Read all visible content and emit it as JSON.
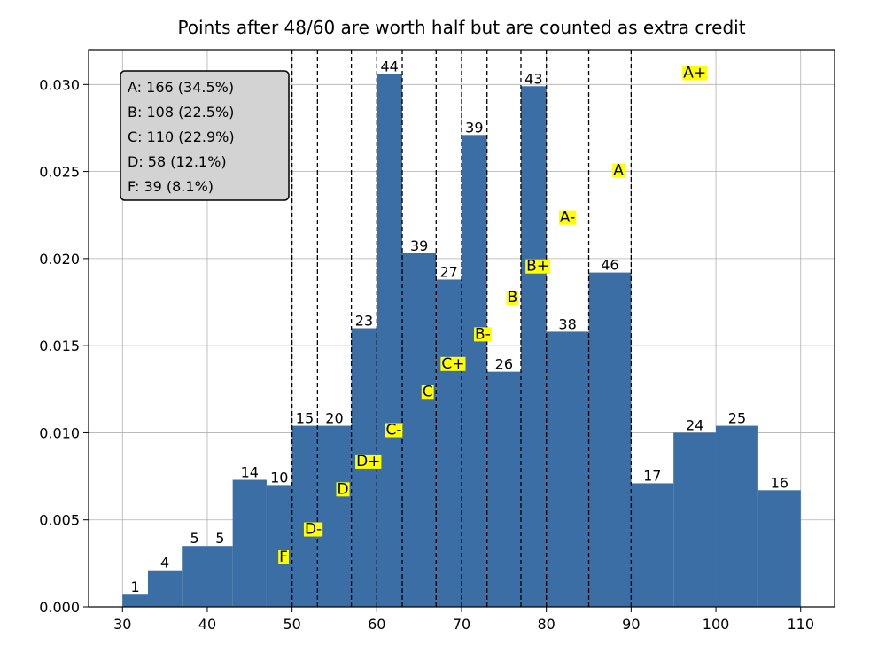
{
  "chart_data": {
    "type": "bar",
    "title": "Points after 48/60 are worth half but are counted as extra credit",
    "xlabel": "",
    "ylabel": "",
    "xlim": [
      26,
      114
    ],
    "ylim": [
      0,
      0.032
    ],
    "grid": true,
    "bar_color": "#3a6ea5",
    "x_ticks": [
      30,
      40,
      50,
      60,
      70,
      80,
      90,
      100,
      110
    ],
    "y_ticks": [
      0.0,
      0.005,
      0.01,
      0.015,
      0.02,
      0.025,
      0.03
    ],
    "y_tick_labels": [
      "0.000",
      "0.005",
      "0.010",
      "0.015",
      "0.020",
      "0.025",
      "0.030"
    ],
    "bins": [
      {
        "x0": 30,
        "x1": 33,
        "density": 0.0007,
        "count": "1"
      },
      {
        "x0": 33,
        "x1": 37,
        "density": 0.0021,
        "count": "4"
      },
      {
        "x0": 37,
        "x1": 40,
        "density": 0.0035,
        "count": "5"
      },
      {
        "x0": 40,
        "x1": 43,
        "density": 0.0035,
        "count": "5"
      },
      {
        "x0": 43,
        "x1": 47,
        "density": 0.0073,
        "count": "14"
      },
      {
        "x0": 47,
        "x1": 50,
        "density": 0.007,
        "count": "10"
      },
      {
        "x0": 50,
        "x1": 53,
        "density": 0.0104,
        "count": "15"
      },
      {
        "x0": 53,
        "x1": 57,
        "density": 0.0104,
        "count": "20"
      },
      {
        "x0": 57,
        "x1": 60,
        "density": 0.016,
        "count": "23"
      },
      {
        "x0": 60,
        "x1": 63,
        "density": 0.0306,
        "count": "44"
      },
      {
        "x0": 63,
        "x1": 67,
        "density": 0.0203,
        "count": "39"
      },
      {
        "x0": 67,
        "x1": 70,
        "density": 0.0188,
        "count": "27"
      },
      {
        "x0": 70,
        "x1": 73,
        "density": 0.0271,
        "count": "39"
      },
      {
        "x0": 73,
        "x1": 77,
        "density": 0.0135,
        "count": "26"
      },
      {
        "x0": 77,
        "x1": 80,
        "density": 0.0299,
        "count": "43"
      },
      {
        "x0": 80,
        "x1": 85,
        "density": 0.0158,
        "count": "38"
      },
      {
        "x0": 85,
        "x1": 90,
        "density": 0.0192,
        "count": "46"
      },
      {
        "x0": 90,
        "x1": 95,
        "density": 0.0071,
        "count": "17"
      },
      {
        "x0": 95,
        "x1": 100,
        "density": 0.01,
        "count": "24"
      },
      {
        "x0": 100,
        "x1": 105,
        "density": 0.0104,
        "count": "25"
      },
      {
        "x0": 105,
        "x1": 110,
        "density": 0.0067,
        "count": "16"
      }
    ],
    "cutoff_lines": [
      50,
      53,
      57,
      60,
      63,
      67,
      70,
      73,
      77,
      80,
      85,
      90
    ],
    "grade_labels": [
      {
        "label": "F",
        "x": 49,
        "y": 0.0029
      },
      {
        "label": "D-",
        "x": 52.5,
        "y": 0.0045
      },
      {
        "label": "D",
        "x": 56,
        "y": 0.0068
      },
      {
        "label": "D+",
        "x": 59,
        "y": 0.0084
      },
      {
        "label": "C-",
        "x": 62,
        "y": 0.0102
      },
      {
        "label": "C",
        "x": 66,
        "y": 0.0124
      },
      {
        "label": "C+",
        "x": 69,
        "y": 0.014
      },
      {
        "label": "B-",
        "x": 72.5,
        "y": 0.0157
      },
      {
        "label": "B",
        "x": 76,
        "y": 0.0178
      },
      {
        "label": "B+",
        "x": 79,
        "y": 0.0196
      },
      {
        "label": "A-",
        "x": 82.5,
        "y": 0.0224
      },
      {
        "label": "A",
        "x": 88.5,
        "y": 0.0251
      },
      {
        "label": "A+",
        "x": 97.5,
        "y": 0.0307
      }
    ],
    "grade_label_highlight": "#ffff00",
    "legend": {
      "location": "top-left",
      "background": "#d3d3d3",
      "lines": [
        "A: 166 (34.5%)",
        "B: 108 (22.5%)",
        "C: 110 (22.9%)",
        "D: 58 (12.1%)",
        "F: 39 (8.1%)"
      ]
    }
  }
}
